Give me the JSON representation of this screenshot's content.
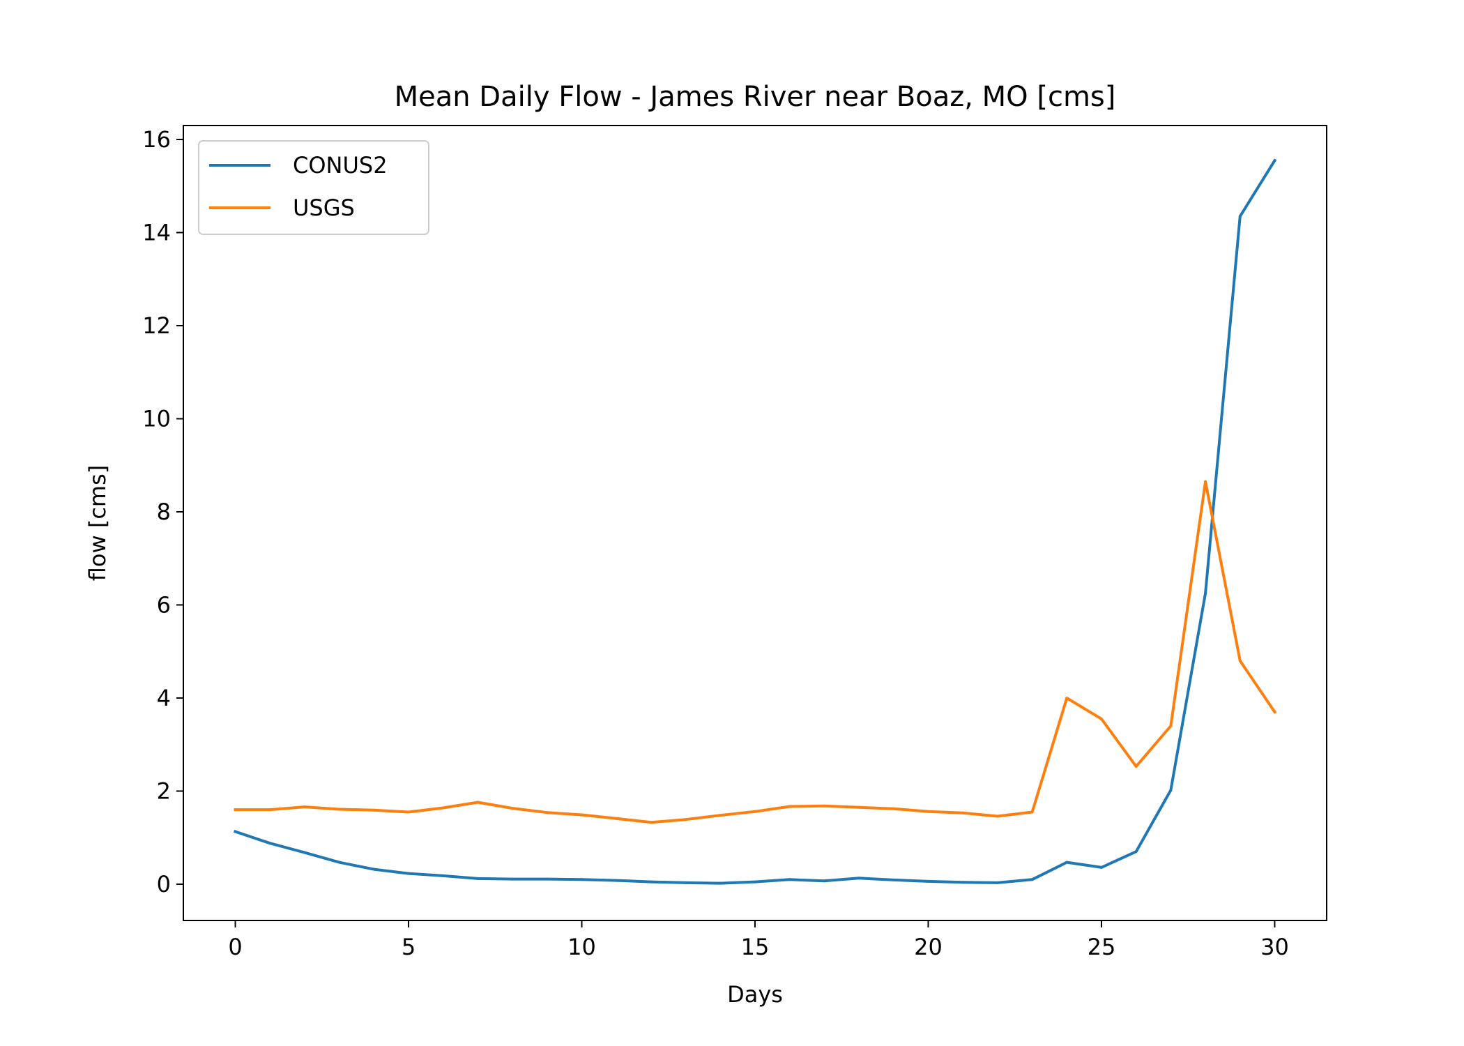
{
  "chart_data": {
    "type": "line",
    "title": "Mean Daily Flow - James River near Boaz, MO [cms]",
    "xlabel": "Days",
    "ylabel": "flow [cms]",
    "xlim": [
      -1.5,
      31.5
    ],
    "ylim": [
      -0.78,
      16.3
    ],
    "xticks": [
      0,
      5,
      10,
      15,
      20,
      25,
      30
    ],
    "yticks": [
      0,
      2,
      4,
      6,
      8,
      10,
      12,
      14,
      16
    ],
    "grid": false,
    "legend_position": "top-left",
    "x": [
      0,
      1,
      2,
      3,
      4,
      5,
      6,
      7,
      8,
      9,
      10,
      11,
      12,
      13,
      14,
      15,
      16,
      17,
      18,
      19,
      20,
      21,
      22,
      23,
      24,
      25,
      26,
      27,
      28,
      29,
      30
    ],
    "series": [
      {
        "name": "CONUS2",
        "color": "#1f77b4",
        "values": [
          1.13,
          0.88,
          0.68,
          0.47,
          0.32,
          0.23,
          0.18,
          0.12,
          0.11,
          0.11,
          0.1,
          0.08,
          0.05,
          0.03,
          0.02,
          0.05,
          0.1,
          0.07,
          0.13,
          0.09,
          0.06,
          0.04,
          0.03,
          0.1,
          0.47,
          0.36,
          0.7,
          2.02,
          6.25,
          14.35,
          15.55
        ]
      },
      {
        "name": "USGS",
        "color": "#ff7f0e",
        "values": [
          1.6,
          1.6,
          1.66,
          1.61,
          1.59,
          1.55,
          1.64,
          1.76,
          1.63,
          1.54,
          1.49,
          1.41,
          1.33,
          1.39,
          1.48,
          1.56,
          1.67,
          1.68,
          1.65,
          1.62,
          1.56,
          1.53,
          1.46,
          1.55,
          4.0,
          3.55,
          2.53,
          3.4,
          8.65,
          4.8,
          3.7
        ]
      }
    ]
  }
}
